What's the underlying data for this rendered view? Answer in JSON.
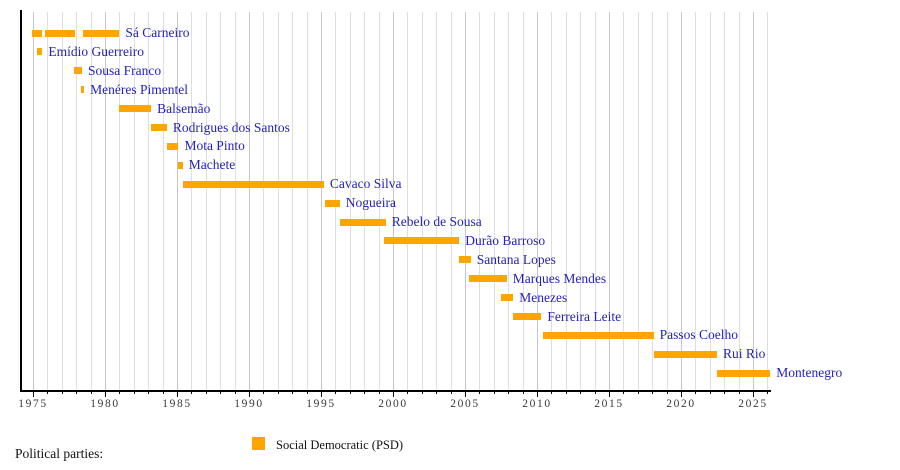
{
  "chart_data": {
    "type": "bar",
    "variant": "gantt-timeline",
    "title": "",
    "xlabel": "",
    "ylabel": "",
    "bar_color": "#FFA500",
    "label_color": "#2323bb",
    "grid": "vertical-yearly",
    "x_axis": {
      "min": 1974.1,
      "max": 2026.3,
      "gridline_years_start": 1975,
      "gridline_years_end": 2026,
      "tick_interval": 1,
      "label_interval": 5,
      "tick_labels": [
        "1975",
        "1980",
        "1985",
        "1990",
        "1995",
        "2000",
        "2005",
        "2010",
        "2015",
        "2020",
        "2025"
      ]
    },
    "series": [
      {
        "name": "Sá Carneiro",
        "party": "Social Democratic (PSD)",
        "segments": [
          [
            1974.9,
            1975.6
          ],
          [
            1975.8,
            1977.9
          ],
          [
            1978.5,
            1981.0
          ]
        ]
      },
      {
        "name": "Emídio Guerreiro",
        "party": "Social Democratic (PSD)",
        "segments": [
          [
            1975.3,
            1975.65
          ]
        ]
      },
      {
        "name": "Sousa Franco",
        "party": "Social Democratic (PSD)",
        "segments": [
          [
            1977.85,
            1978.4
          ]
        ]
      },
      {
        "name": "Menéres Pimentel",
        "party": "Social Democratic (PSD)",
        "segments": [
          [
            1978.3,
            1978.55
          ]
        ]
      },
      {
        "name": "Balsemão",
        "party": "Social Democratic (PSD)",
        "segments": [
          [
            1981.0,
            1983.2
          ]
        ]
      },
      {
        "name": "Rodrigues dos Santos",
        "party": "Social Democratic (PSD)",
        "segments": [
          [
            1983.2,
            1984.3
          ]
        ]
      },
      {
        "name": "Mota Pinto",
        "party": "Social Democratic (PSD)",
        "segments": [
          [
            1984.3,
            1985.1
          ]
        ]
      },
      {
        "name": "Machete",
        "party": "Social Democratic (PSD)",
        "segments": [
          [
            1985.1,
            1985.4
          ]
        ]
      },
      {
        "name": "Cavaco Silva",
        "party": "Social Democratic (PSD)",
        "segments": [
          [
            1985.4,
            1995.2
          ]
        ]
      },
      {
        "name": "Nogueira",
        "party": "Social Democratic (PSD)",
        "segments": [
          [
            1995.3,
            1996.3
          ]
        ]
      },
      {
        "name": "Rebelo de Sousa",
        "party": "Social Democratic (PSD)",
        "segments": [
          [
            1996.3,
            1999.5
          ]
        ]
      },
      {
        "name": "Durão Barroso",
        "party": "Social Democratic (PSD)",
        "segments": [
          [
            1999.4,
            2004.6
          ]
        ]
      },
      {
        "name": "Santana Lopes",
        "party": "Social Democratic (PSD)",
        "segments": [
          [
            2004.6,
            2005.4
          ]
        ]
      },
      {
        "name": "Marques Mendes",
        "party": "Social Democratic (PSD)",
        "segments": [
          [
            2005.3,
            2007.9
          ]
        ]
      },
      {
        "name": "Menezes",
        "party": "Social Democratic (PSD)",
        "segments": [
          [
            2007.5,
            2008.35
          ]
        ]
      },
      {
        "name": "Ferreira Leite",
        "party": "Social Democratic (PSD)",
        "segments": [
          [
            2008.3,
            2010.3
          ]
        ]
      },
      {
        "name": "Passos Coelho",
        "party": "Social Democratic (PSD)",
        "segments": [
          [
            2010.4,
            2018.1
          ]
        ]
      },
      {
        "name": "Rui Rio",
        "party": "Social Democratic (PSD)",
        "segments": [
          [
            2018.1,
            2022.5
          ]
        ]
      },
      {
        "name": "Montenegro",
        "party": "Social Democratic (PSD)",
        "segments": [
          [
            2022.5,
            2026.2
          ]
        ]
      }
    ]
  },
  "legend": {
    "title": "Political parties:",
    "items": [
      {
        "label": "Social Democratic (PSD)",
        "color": "#FFA500"
      }
    ]
  }
}
